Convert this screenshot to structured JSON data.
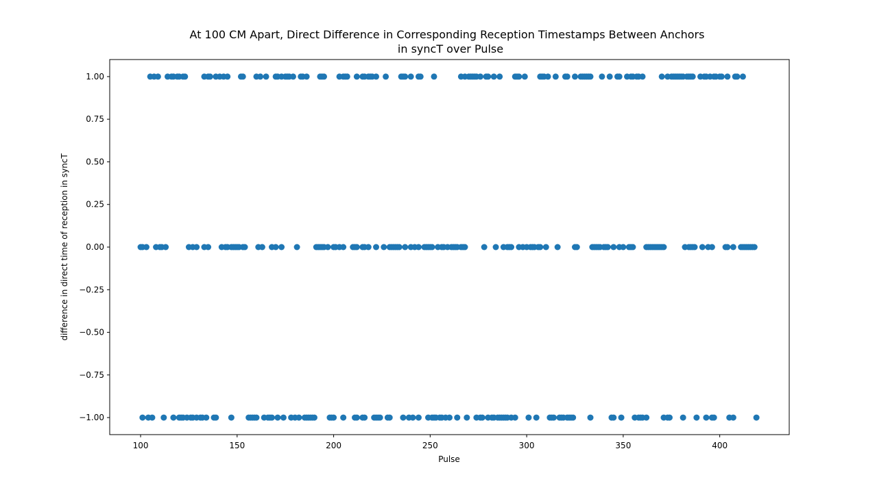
{
  "chart_data": {
    "type": "scatter",
    "title_line1": "At 100 CM Apart, Direct Difference in Corresponding Reception Timestamps Between Anchors",
    "title_line2": "in syncT over Pulse",
    "xlabel": "Pulse",
    "ylabel": "difference in direct time of reception in syncT",
    "xlim": [
      84,
      436
    ],
    "ylim": [
      -1.1,
      1.1
    ],
    "xticks": [
      100,
      150,
      200,
      250,
      300,
      350,
      400
    ],
    "xtick_labels": [
      "100",
      "150",
      "200",
      "250",
      "300",
      "350",
      "400"
    ],
    "yticks": [
      1.0,
      0.75,
      0.5,
      0.25,
      0.0,
      -0.25,
      -0.5,
      -0.75,
      -1.0
    ],
    "ytick_labels": [
      "1.00",
      "0.75",
      "0.50",
      "0.25",
      "0.00",
      "−0.25",
      "−0.50",
      "−0.75",
      "−1.00"
    ],
    "grid": false,
    "color": "#1f77b4",
    "series": [
      {
        "y": 1.0,
        "x": [
          105,
          107,
          109,
          114,
          116,
          117,
          119,
          120,
          122,
          123,
          133,
          135,
          136,
          139,
          141,
          143,
          145,
          152,
          153,
          160,
          162,
          165,
          170,
          171,
          173,
          175,
          176,
          177,
          179,
          183,
          184,
          186,
          193,
          194,
          195,
          203,
          205,
          206,
          207,
          212,
          215,
          216,
          218,
          219,
          220,
          222,
          227,
          235,
          236,
          237,
          240,
          244,
          245,
          252,
          266,
          268,
          270,
          271,
          272,
          273,
          274,
          276,
          279,
          280,
          283,
          286,
          294,
          295,
          296,
          299,
          307,
          308,
          309,
          311,
          315,
          320,
          321,
          325,
          328,
          329,
          330,
          331,
          332,
          333,
          339,
          343,
          347,
          348,
          352,
          354,
          355,
          357,
          358,
          360,
          370,
          373,
          375,
          376,
          377,
          378,
          379,
          380,
          381,
          383,
          384,
          385,
          386,
          390,
          392,
          393,
          395,
          397,
          398,
          400,
          401,
          404,
          408,
          409,
          412
        ]
      },
      {
        "y": 0.0,
        "x": [
          100,
          101,
          103,
          108,
          110,
          111,
          113,
          125,
          127,
          129,
          133,
          135,
          142,
          144,
          145,
          147,
          148,
          149,
          150,
          151,
          153,
          154,
          161,
          163,
          168,
          170,
          173,
          181,
          191,
          192,
          193,
          194,
          195,
          197,
          200,
          201,
          203,
          205,
          210,
          211,
          212,
          215,
          216,
          218,
          222,
          226,
          229,
          230,
          231,
          232,
          233,
          234,
          237,
          240,
          242,
          244,
          247,
          248,
          249,
          250,
          251,
          254,
          256,
          257,
          259,
          261,
          262,
          263,
          264,
          266,
          267,
          268,
          278,
          284,
          288,
          290,
          291,
          292,
          296,
          298,
          300,
          302,
          303,
          304,
          306,
          307,
          310,
          316,
          325,
          326,
          334,
          335,
          336,
          337,
          338,
          340,
          341,
          342,
          345,
          348,
          350,
          353,
          354,
          355,
          362,
          363,
          364,
          365,
          366,
          367,
          368,
          369,
          370,
          371,
          382,
          384,
          385,
          386,
          387,
          391,
          394,
          396,
          403,
          404,
          407,
          411,
          412,
          413,
          414,
          415,
          416,
          417,
          418
        ]
      },
      {
        "y": -1.0,
        "x": [
          101,
          104,
          106,
          112,
          117,
          120,
          121,
          122,
          124,
          126,
          127,
          129,
          131,
          132,
          134,
          138,
          139,
          147,
          156,
          157,
          158,
          159,
          160,
          164,
          166,
          167,
          168,
          171,
          174,
          178,
          180,
          182,
          185,
          186,
          187,
          188,
          189,
          190,
          198,
          199,
          200,
          205,
          211,
          212,
          215,
          216,
          221,
          222,
          223,
          224,
          228,
          229,
          236,
          239,
          241,
          244,
          249,
          251,
          252,
          253,
          255,
          256,
          258,
          260,
          264,
          269,
          274,
          276,
          277,
          280,
          282,
          283,
          285,
          286,
          287,
          288,
          289,
          290,
          292,
          294,
          301,
          305,
          312,
          313,
          314,
          317,
          318,
          319,
          321,
          322,
          323,
          324,
          333,
          344,
          345,
          349,
          356,
          358,
          359,
          360,
          362,
          371,
          373,
          374,
          381,
          388,
          393,
          396,
          397,
          405,
          407,
          419
        ]
      }
    ]
  }
}
